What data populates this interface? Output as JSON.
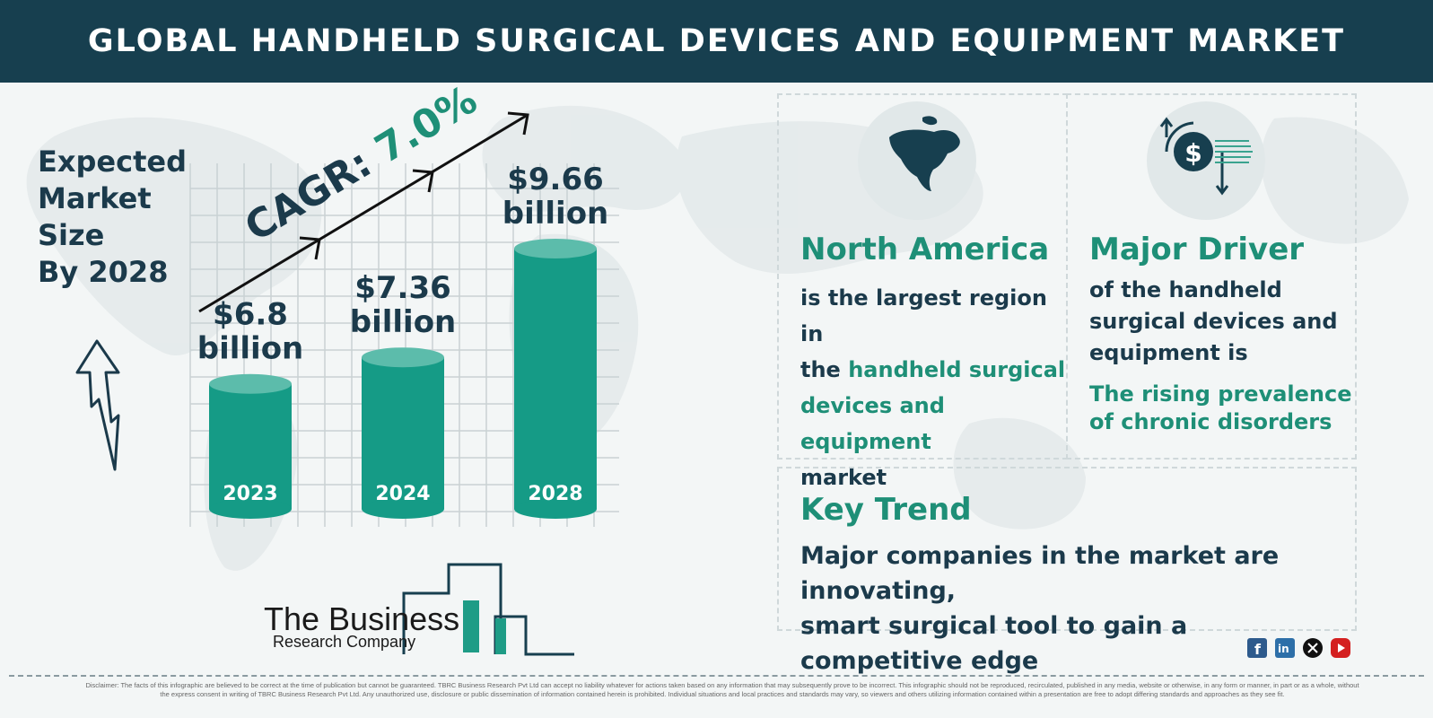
{
  "header": {
    "title": "GLOBAL HANDHELD SURGICAL DEVICES AND EQUIPMENT MARKET"
  },
  "left": {
    "expected_lines": [
      "Expected",
      "Market",
      "Size",
      "By 2028"
    ]
  },
  "chart_data": {
    "type": "bar",
    "categories": [
      "2023",
      "2024",
      "2028"
    ],
    "values": [
      6.8,
      7.36,
      9.66
    ],
    "value_labels": [
      [
        "$6.8",
        "billion"
      ],
      [
        "$7.36",
        "billion"
      ],
      [
        "$9.66",
        "billion"
      ]
    ],
    "cagr_prefix": "CAGR: ",
    "cagr_value": "7.0%",
    "unit": "billion USD"
  },
  "north_america": {
    "icon": "north-america-map-icon",
    "heading": "North America",
    "line1": "is the largest region in",
    "line2_prefix": "the ",
    "line2_green": "handheld surgical",
    "line3_green": "devices and equipment",
    "line4": "market"
  },
  "driver": {
    "icon": "dollar-cycle-icon",
    "heading": "Major Driver",
    "lines": [
      "of the handheld",
      "surgical devices and",
      "equipment is"
    ],
    "green_lines": [
      "The rising prevalence",
      "of chronic disorders"
    ]
  },
  "trend": {
    "heading": "Key Trend",
    "lines": [
      "Major companies in the market are innovating,",
      "smart surgical tool to gain a competitive edge"
    ]
  },
  "logo": {
    "line1": "The Business",
    "line2": "Research Company"
  },
  "social": [
    "facebook-icon",
    "linkedin-icon",
    "x-icon",
    "youtube-icon"
  ],
  "colors": {
    "header": "#173f4f",
    "teal": "#159b86",
    "teal_top": "#5cbcab",
    "green_text": "#1e8f77",
    "dark_text": "#1b3a4b"
  },
  "disclaimer": "Disclaimer: The facts of this infographic are believed to be correct at the time of publication but cannot be guaranteed. TBRC Business Research Pvt Ltd can accept no liability whatever for actions taken based on any information that may subsequently prove to be incorrect. This infographic should not be reproduced, recirculated, published in any media, website or otherwise, in any form or manner, in part or as a whole, without the express consent in writing of TBRC Business Research Pvt Ltd. Any unauthorized use, disclosure or public dissemination of information contained herein is prohibited. Individual situations and local practices and standards may vary, so viewers and others utilizing information contained within a presentation are free to adopt differing standards and approaches as they see fit."
}
